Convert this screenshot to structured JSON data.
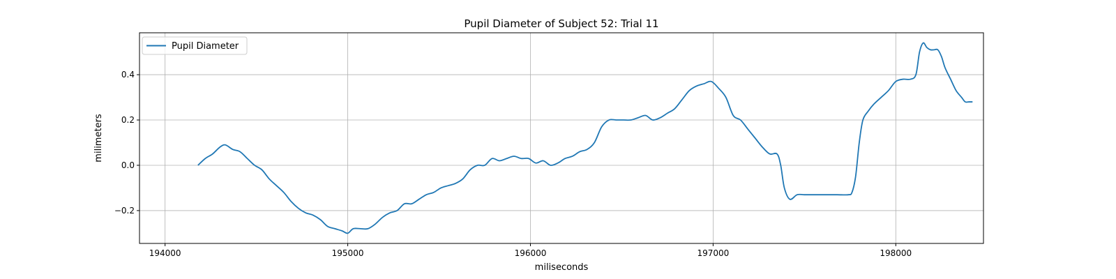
{
  "chart_data": {
    "type": "line",
    "title": "Pupil Diameter of Subject 52: Trial 11",
    "xlabel": "miliseconds",
    "ylabel": "milimeters",
    "xlim": [
      193860,
      198480
    ],
    "ylim": [
      -0.345,
      0.585
    ],
    "x_ticks": [
      194000,
      195000,
      196000,
      197000,
      198000
    ],
    "y_ticks": [
      -0.2,
      0.0,
      0.2,
      0.4
    ],
    "x_tick_labels": [
      "194000",
      "195000",
      "196000",
      "197000",
      "198000"
    ],
    "y_tick_labels": [
      "−0.2",
      "0.0",
      "0.2",
      "0.4"
    ],
    "grid": true,
    "legend": {
      "position": "top-left",
      "entries": [
        "Pupil Diameter"
      ]
    },
    "series": [
      {
        "name": "Pupil Diameter",
        "color": "#1f77b4",
        "x": [
          194180,
          194220,
          194260,
          194300,
          194330,
          194370,
          194410,
          194450,
          194490,
          194530,
          194570,
          194610,
          194650,
          194690,
          194730,
          194770,
          194810,
          194850,
          194890,
          194930,
          194970,
          195000,
          195030,
          195070,
          195110,
          195150,
          195190,
          195230,
          195270,
          195310,
          195350,
          195390,
          195430,
          195470,
          195510,
          195550,
          195590,
          195630,
          195670,
          195710,
          195750,
          195790,
          195830,
          195870,
          195910,
          195950,
          195990,
          196030,
          196070,
          196110,
          196150,
          196190,
          196230,
          196270,
          196310,
          196350,
          196390,
          196430,
          196470,
          196510,
          196550,
          196590,
          196630,
          196670,
          196710,
          196750,
          196790,
          196830,
          196870,
          196910,
          196950,
          196990,
          197030,
          197070,
          197110,
          197150,
          197190,
          197230,
          197270,
          197310,
          197350,
          197370,
          197390,
          197420,
          197460,
          197500,
          197560,
          197620,
          197680,
          197740,
          197760,
          197780,
          197800,
          197820,
          197850,
          197880,
          197920,
          197960,
          198000,
          198040,
          198080,
          198110,
          198130,
          198150,
          198170,
          198190,
          198210,
          198230,
          198250,
          198270,
          198300,
          198330,
          198360,
          198380,
          198400,
          198420
        ],
        "y": [
          0.0,
          0.03,
          0.05,
          0.08,
          0.09,
          0.07,
          0.06,
          0.03,
          0.0,
          -0.02,
          -0.06,
          -0.09,
          -0.12,
          -0.16,
          -0.19,
          -0.21,
          -0.22,
          -0.24,
          -0.27,
          -0.28,
          -0.29,
          -0.3,
          -0.28,
          -0.28,
          -0.28,
          -0.26,
          -0.23,
          -0.21,
          -0.2,
          -0.17,
          -0.17,
          -0.15,
          -0.13,
          -0.12,
          -0.1,
          -0.09,
          -0.08,
          -0.06,
          -0.02,
          0.0,
          0.0,
          0.03,
          0.02,
          0.03,
          0.04,
          0.03,
          0.03,
          0.01,
          0.02,
          0.0,
          0.01,
          0.03,
          0.04,
          0.06,
          0.07,
          0.1,
          0.17,
          0.2,
          0.2,
          0.2,
          0.2,
          0.21,
          0.22,
          0.2,
          0.21,
          0.23,
          0.25,
          0.29,
          0.33,
          0.35,
          0.36,
          0.37,
          0.34,
          0.3,
          0.22,
          0.2,
          0.16,
          0.12,
          0.08,
          0.05,
          0.05,
          0.0,
          -0.1,
          -0.15,
          -0.13,
          -0.13,
          -0.13,
          -0.13,
          -0.13,
          -0.13,
          -0.12,
          -0.05,
          0.1,
          0.2,
          0.24,
          0.27,
          0.3,
          0.33,
          0.37,
          0.38,
          0.38,
          0.4,
          0.5,
          0.54,
          0.52,
          0.51,
          0.51,
          0.51,
          0.48,
          0.43,
          0.38,
          0.33,
          0.3,
          0.28,
          0.28,
          0.28
        ]
      }
    ]
  }
}
